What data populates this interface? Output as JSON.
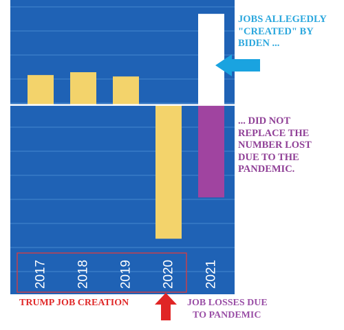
{
  "colors": {
    "panel": "#1f62b5",
    "panel_stripe": "#3275c2",
    "baseline": "#ffffff",
    "bar_trump": "#f3d36b",
    "bar_biden_created": "#ffffff",
    "bar_biden_lost": "#a044a0",
    "box_border": "#e03b3b",
    "arrow_blue": "#1aa3e0",
    "arrow_red": "#e02525",
    "text_created": "#2ba7dd",
    "text_not_replaced": "#8f3f96",
    "text_trump": "#e02a2a",
    "text_losses": "#9a4fa6"
  },
  "chart_data": {
    "type": "bar",
    "title": "",
    "xlabel": "",
    "ylabel": "",
    "y_axis_labels_shown": false,
    "grid": "horizontal",
    "categories": [
      "2017",
      "2018",
      "2019",
      "2020",
      "2021"
    ],
    "series": [
      {
        "values": [
          2.1,
          2.3,
          2.0,
          null,
          null
        ]
      },
      {
        "values": [
          null,
          null,
          null,
          -9.4,
          6.4
        ]
      },
      {
        "values": [
          null,
          null,
          null,
          null,
          -6.5
        ]
      }
    ],
    "ylim": [
      -10.5,
      6.6
    ]
  },
  "annotations": {
    "created_text": "JOBS ALLEGEDLY\n\"CREATED\" BY\nBIDEN ...",
    "not_replaced_text": "... DID NOT\nREPLACE THE\nNUMBER LOST\nDUE TO THE\nPANDEMIC.",
    "trump_label": "TRUMP JOB CREATION",
    "losses_label": "JOB LOSSES DUE\nTO PANDEMIC",
    "arrow_blue_icon": "arrow-left-icon",
    "arrow_red_icon": "arrow-up-icon"
  }
}
